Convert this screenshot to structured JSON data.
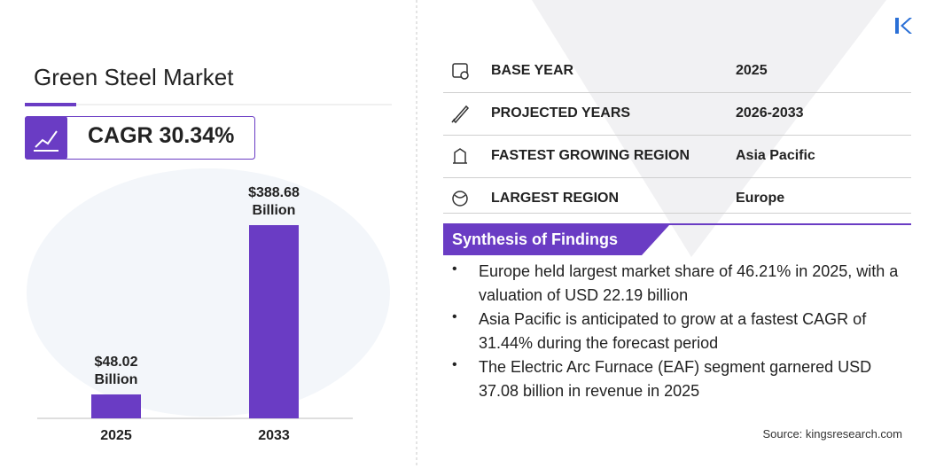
{
  "title": "Green Steel Market",
  "cagr": "CAGR 30.34%",
  "info_rows": [
    {
      "label": "BASE YEAR",
      "value": "2025"
    },
    {
      "label": "PROJECTED YEARS",
      "value": "2026-2033"
    },
    {
      "label": "FASTEST GROWING REGION",
      "value": "Asia Pacific"
    },
    {
      "label": "LARGEST REGION",
      "value": "Europe"
    }
  ],
  "synthesis": {
    "heading": "Synthesis of Findings",
    "bullets": [
      "Europe held largest market share of 46.21% in 2025, with a valuation of USD 22.19 billion",
      "Asia Pacific is anticipated to grow at a fastest CAGR of 31.44% during the forecast period",
      "The Electric Arc Furnace (EAF) segment garnered USD 37.08 billion in revenue in 2025"
    ]
  },
  "source": "Source: kingsresearch.com",
  "chart_data": {
    "type": "bar",
    "categories": [
      "2025",
      "2033"
    ],
    "values": [
      48.02,
      388.68
    ],
    "value_labels": [
      "$48.02 Billion",
      "$388.68 Billion"
    ],
    "color": "#6a3cc4"
  }
}
